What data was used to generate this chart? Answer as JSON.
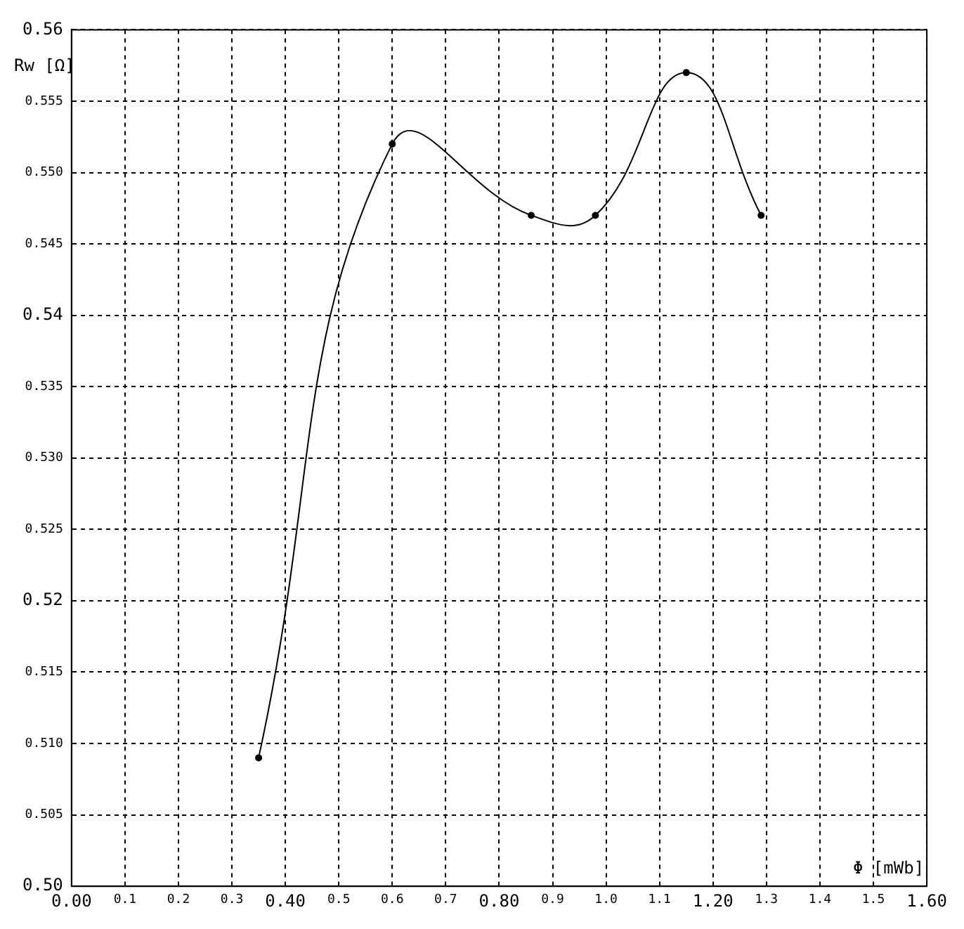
{
  "chart_data": {
    "type": "line",
    "xlabel": "Φ [mWb]",
    "ylabel": "Rw [Ω]",
    "x": [
      0.35,
      0.6,
      0.86,
      0.98,
      1.15,
      1.29
    ],
    "series": [
      {
        "color": "#000000",
        "values": [
          0.509,
          0.552,
          0.547,
          0.547,
          0.557,
          0.547
        ]
      }
    ],
    "xlim": [
      0,
      1.6
    ],
    "ylim": [
      0.5,
      0.56
    ],
    "xticks": [
      {
        "value": 0,
        "label": "0.00"
      },
      0.1,
      0.2,
      0.3,
      {
        "value": 0.4,
        "label": "0.40"
      },
      0.5,
      0.6,
      0.7,
      {
        "value": 0.8,
        "label": "0.80"
      },
      0.9,
      {
        "value": 1,
        "label": "1.0"
      },
      1.1,
      {
        "value": 1.2,
        "label": "1.20"
      },
      1.3,
      1.4,
      1.5,
      {
        "value": 1.6,
        "label": "1.60"
      }
    ],
    "yticks": [
      {
        "value": 0.5,
        "label": "0.50"
      },
      0.505,
      {
        "value": 0.51,
        "label": "0.510"
      },
      0.515,
      0.52,
      0.525,
      {
        "value": 0.53,
        "label": "0.530"
      },
      0.535,
      0.54,
      0.545,
      {
        "value": 0.55,
        "label": "0.550"
      },
      0.555,
      0.56
    ],
    "grid": true,
    "marker": "circle",
    "line_style": "solid"
  }
}
